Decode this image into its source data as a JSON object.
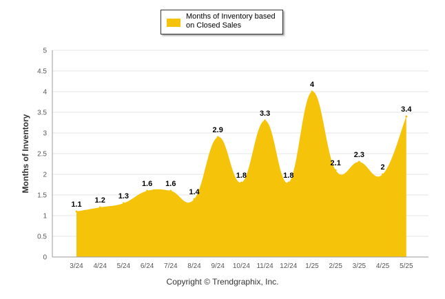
{
  "chart_data": {
    "type": "area",
    "categories": [
      "3/24",
      "4/24",
      "5/24",
      "6/24",
      "7/24",
      "8/24",
      "9/24",
      "10/24",
      "11/24",
      "12/24",
      "1/25",
      "2/25",
      "3/25",
      "4/25",
      "5/25"
    ],
    "series": [
      {
        "name": "Months of Inventory based on Closed Sales",
        "values": [
          1.1,
          1.2,
          1.3,
          1.6,
          1.6,
          1.4,
          2.9,
          1.8,
          3.3,
          1.8,
          4,
          2.1,
          2.3,
          2,
          3.4
        ],
        "color": "#f5c30a"
      }
    ],
    "data_labels": [
      "1.1",
      "1.2",
      "1.3",
      "1.6",
      "1.6",
      "1.4",
      "2.9",
      "1.8",
      "3.3",
      "1.8",
      "4",
      "2.1",
      "2.3",
      "2",
      "3.4"
    ],
    "ylabel": "Months of Inventory",
    "xlabel": "",
    "ylim": [
      0,
      5
    ],
    "yticks": [
      "0",
      "0.5",
      "1",
      "1.5",
      "2",
      "2.5",
      "3",
      "3.5",
      "4",
      "4.5",
      "5"
    ],
    "ytick_values": [
      0,
      0.5,
      1,
      1.5,
      2,
      2.5,
      3,
      3.5,
      4,
      4.5,
      5
    ],
    "grid": true,
    "legend": "top-center"
  },
  "legend": {
    "label": "Months of Inventory based on Closed Sales"
  },
  "footer": {
    "copyright": "Copyright © Trendgraphix, Inc."
  },
  "colors": {
    "area": "#f5c30a",
    "grid": "#e6e6e6",
    "axis": "#999999"
  }
}
